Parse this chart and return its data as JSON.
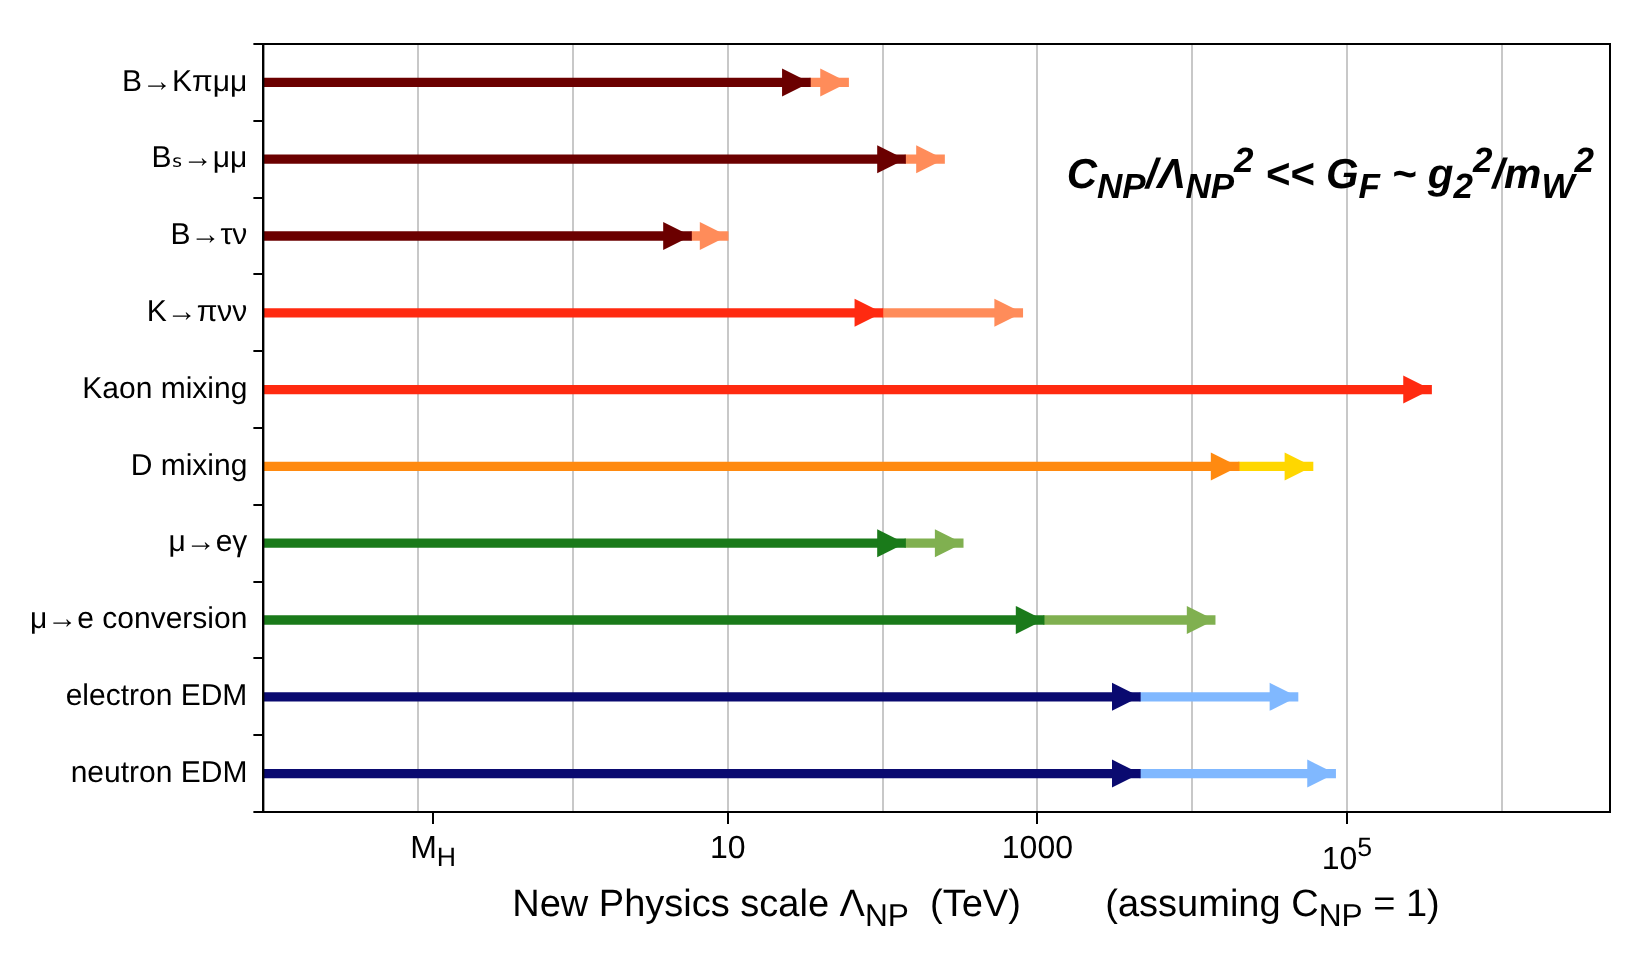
{
  "chart_data": {
    "type": "bar",
    "orientation": "horizontal",
    "stacked": true,
    "log": "x",
    "grid": "x",
    "categories": [
      "B→Kπμμ",
      "Bₛ→μμ",
      "B→τν",
      "K→πνν",
      "Kaon mixing",
      "D mixing",
      "μ→eγ",
      "μ→e conversion",
      "electron EDM",
      "neutron EDM"
    ],
    "series": [
      {
        "colors": [
          "#6b0000",
          "#6b0000",
          "#6b0000",
          "#ff2a10",
          "#ff2a10",
          "#ff8a10",
          "#1a7a1a",
          "#1a7a1a",
          "#0a0a70",
          "#0a0a70"
        ],
        "values": [
          34,
          140,
          5.8,
          100,
          350000,
          20000,
          140,
          1100,
          4600,
          4600
        ]
      },
      {
        "colors": [
          "#ff8c5a",
          "#ff8c5a",
          "#ff8c5a",
          "#ff8c5a",
          "#ff8c5a",
          "#ffd700",
          "#80b050",
          "#80b050",
          "#80b8ff",
          "#80b8ff"
        ],
        "values": [
          26,
          110,
          4.2,
          700,
          null,
          40000,
          190,
          12900,
          43400,
          79400
        ]
      }
    ],
    "xlim": [
      0.01,
      5000000
    ],
    "xticks": [
      {
        "value": 0.1,
        "label": null
      },
      {
        "value": 0.125,
        "label": "M$_{H}$"
      },
      {
        "value": 1,
        "label": null
      },
      10,
      {
        "value": 100,
        "label": null
      },
      1000,
      {
        "value": 10000,
        "label": null
      },
      {
        "value": 100000,
        "label": "10$^{5}$"
      },
      {
        "value": 1000000,
        "label": null
      }
    ],
    "xlabel": "New Physics scale Λ$_{NP}$  (TeV)        (assuming C$_{NP}$ = 1)",
    "annotations": [
      "C$_{NP}$/Λ$_{NP}$$^{2}$ << G$_{F}$ ~ g$_{2}$$^{2}$/m$_{W}$$^{2}$"
    ]
  }
}
